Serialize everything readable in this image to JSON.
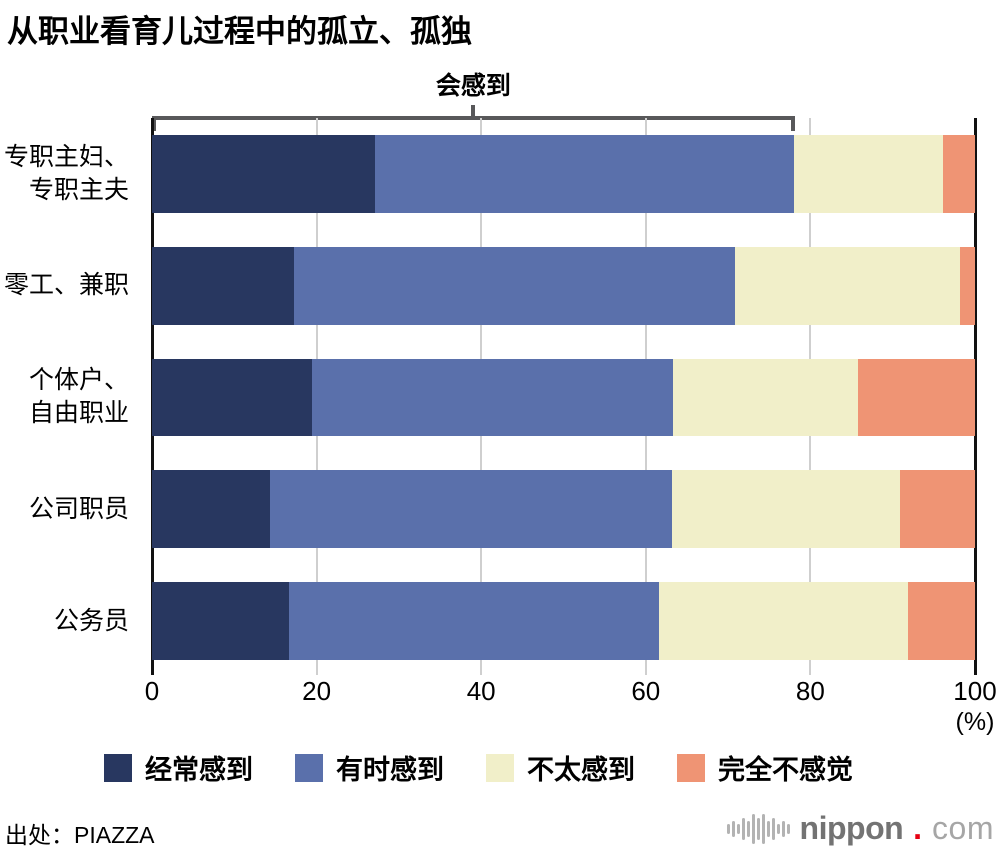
{
  "title": "从职业看育儿过程中的孤立、孤独",
  "chart_data": {
    "type": "bar",
    "orientation": "horizontal",
    "stacked": true,
    "unit": "(%)",
    "xlim": [
      0,
      100
    ],
    "x_ticks": [
      0,
      20,
      40,
      60,
      80,
      100
    ],
    "grid": true,
    "legend_position": "bottom",
    "categories": [
      [
        "专职主妇、",
        "专职主夫"
      ],
      [
        "零工、兼职"
      ],
      [
        "个体户、",
        "自由职业"
      ],
      [
        "公司职员"
      ],
      [
        "公务员"
      ]
    ],
    "series": [
      {
        "name": "经常感到",
        "color": "#283760",
        "values": [
          27.1,
          17.3,
          19.4,
          14.3,
          16.7
        ]
      },
      {
        "name": "有时感到",
        "color": "#5a70ab",
        "values": [
          50.9,
          53.5,
          43.9,
          48.9,
          44.9
        ]
      },
      {
        "name": "不太感到",
        "color": "#f1efc9",
        "values": [
          18.1,
          27.4,
          22.5,
          27.7,
          30.3
        ]
      },
      {
        "name": "完全不感觉",
        "color": "#ef9474",
        "values": [
          3.9,
          1.8,
          14.2,
          9.1,
          8.1
        ]
      }
    ],
    "annotation": {
      "label": "会感到",
      "span_pct": 78.1,
      "covers_series": [
        "经常感到",
        "有时感到"
      ]
    }
  },
  "colors": {
    "bracket": "#58585a",
    "gridline": "#cfcfcf",
    "axis_edge": "#111111",
    "logo_red": "#e60012"
  },
  "footer": {
    "source": "出处：PIAZZA",
    "logo": {
      "name": "nippon",
      "dot": ".",
      "tld": "com"
    }
  }
}
